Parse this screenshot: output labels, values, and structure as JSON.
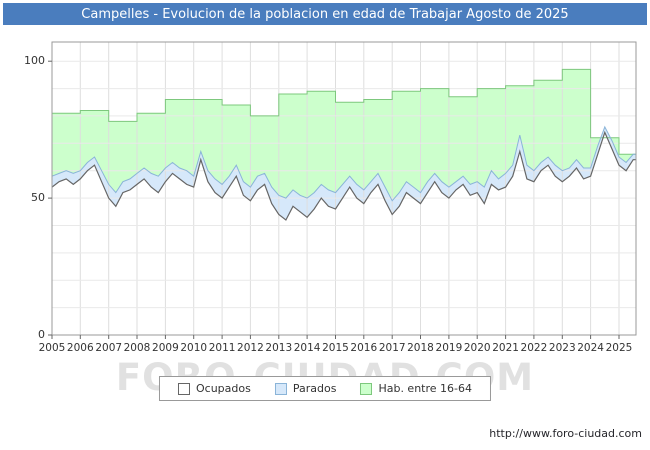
{
  "header": {
    "title": "Campelles - Evolucion de la poblacion en edad de Trabajar Agosto de 2025",
    "bg_color": "#4a7dbe",
    "text_color": "#ffffff"
  },
  "watermark": "FORO-CIUDAD.COM",
  "footer": {
    "url": "http://www.foro-ciudad.com"
  },
  "chart_data": {
    "type": "area",
    "title": "Campelles - Evolucion de la poblacion en edad de Trabajar Agosto de 2025",
    "xlabel": "",
    "ylabel": "",
    "xlim": [
      2005,
      2025.6
    ],
    "ylim": [
      0,
      107
    ],
    "yticks": [
      0,
      50,
      100
    ],
    "xticks": [
      2005,
      2006,
      2007,
      2008,
      2009,
      2010,
      2011,
      2012,
      2013,
      2014,
      2015,
      2016,
      2017,
      2018,
      2019,
      2020,
      2021,
      2022,
      2023,
      2024,
      2025
    ],
    "grid": true,
    "legend_position": "bottom",
    "x_start": 2005,
    "x_step": 0.25,
    "series": [
      {
        "name": "Ocupados",
        "fill": "#ffffff",
        "stroke": "#666666",
        "values": [
          54,
          56,
          57,
          55,
          57,
          60,
          62,
          56,
          50,
          47,
          52,
          53,
          55,
          57,
          54,
          52,
          56,
          59,
          57,
          55,
          54,
          64,
          56,
          52,
          50,
          54,
          58,
          51,
          49,
          53,
          55,
          48,
          44,
          42,
          47,
          45,
          43,
          46,
          50,
          47,
          46,
          50,
          54,
          50,
          48,
          52,
          55,
          49,
          44,
          47,
          52,
          50,
          48,
          52,
          56,
          52,
          50,
          53,
          55,
          51,
          52,
          48,
          55,
          53,
          54,
          58,
          67,
          57,
          56,
          60,
          62,
          58,
          56,
          58,
          61,
          57,
          58,
          66,
          74,
          68,
          62,
          60,
          64
        ]
      },
      {
        "name": "Parados",
        "fill": "#d6e8fa",
        "stroke": "#8ab4d8",
        "stacked_on": "Ocupados",
        "values": [
          4,
          3,
          3,
          4,
          3,
          3,
          3,
          4,
          5,
          5,
          4,
          4,
          4,
          4,
          5,
          6,
          5,
          4,
          4,
          5,
          4,
          3,
          4,
          5,
          5,
          4,
          4,
          5,
          5,
          5,
          4,
          6,
          7,
          8,
          6,
          6,
          7,
          6,
          5,
          6,
          6,
          5,
          4,
          5,
          5,
          4,
          4,
          5,
          5,
          5,
          4,
          4,
          4,
          4,
          3,
          4,
          4,
          3,
          3,
          4,
          4,
          6,
          5,
          4,
          5,
          4,
          6,
          5,
          4,
          3,
          3,
          4,
          4,
          3,
          3,
          4,
          3,
          3,
          2,
          3,
          3,
          3,
          2
        ]
      },
      {
        "name": "Hab. entre 16-64",
        "fill": "#ccffcc",
        "stroke": "#7dc87d",
        "step": true,
        "years": [
          2005,
          2006,
          2007,
          2008,
          2009,
          2010,
          2011,
          2012,
          2013,
          2014,
          2015,
          2016,
          2017,
          2018,
          2019,
          2020,
          2021,
          2022,
          2023,
          2024,
          2025
        ],
        "values": [
          81,
          82,
          78,
          81,
          86,
          86,
          84,
          80,
          88,
          89,
          85,
          86,
          89,
          90,
          87,
          90,
          91,
          93,
          97,
          72,
          66
        ]
      }
    ]
  }
}
